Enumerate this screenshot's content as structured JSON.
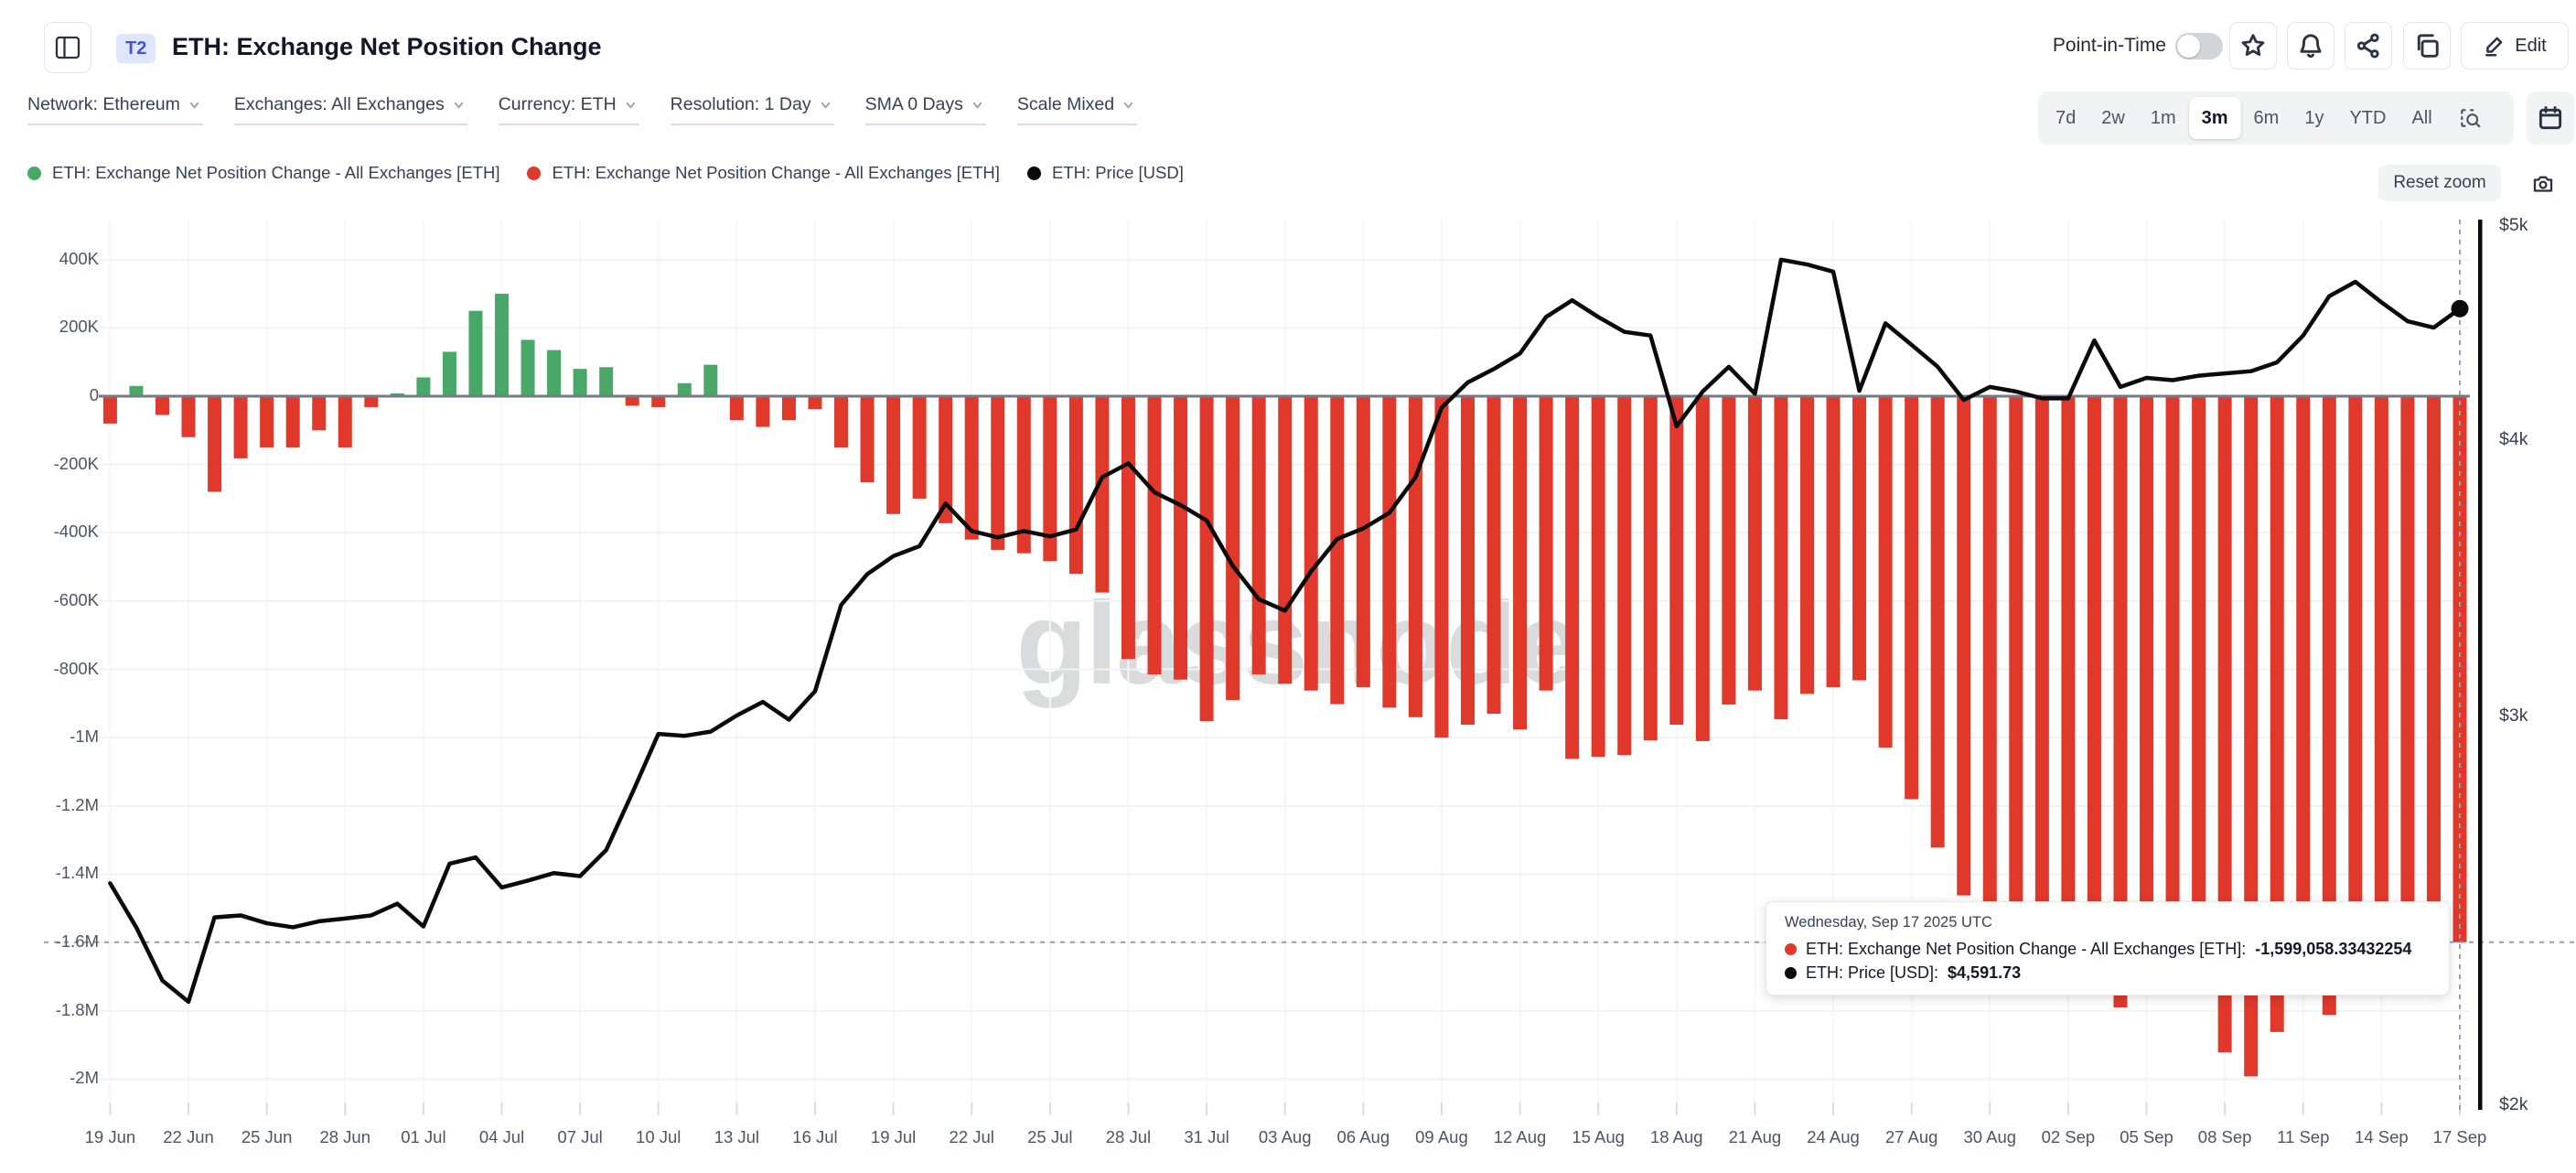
{
  "header": {
    "badge": "T2",
    "title": "ETH: Exchange Net Position Change",
    "point_in_time_label": "Point-in-Time",
    "point_in_time_state": "off",
    "edit_label": "Edit",
    "icon_buttons": [
      "panel-toggle",
      "favorite-star",
      "notification-bell",
      "share",
      "copy",
      "edit-pencil"
    ]
  },
  "filters": [
    {
      "label": "Network: Ethereum"
    },
    {
      "label": "Exchanges: All Exchanges"
    },
    {
      "label": "Currency: ETH"
    },
    {
      "label": "Resolution: 1 Day"
    },
    {
      "label": "SMA 0 Days"
    },
    {
      "label": "Scale Mixed"
    }
  ],
  "range_selector": {
    "options": [
      "7d",
      "2w",
      "1m",
      "3m",
      "6m",
      "1y",
      "YTD",
      "All"
    ],
    "active": "3m",
    "extra_icons": [
      "zoom-area",
      "calendar"
    ]
  },
  "legend": [
    {
      "label": "ETH: Exchange Net Position Change - All Exchanges [ETH]",
      "color": "#48a868"
    },
    {
      "label": "ETH: Exchange Net Position Change - All Exchanges [ETH]",
      "color": "#e0392b"
    },
    {
      "label": "ETH: Price [USD]",
      "color": "#0a0a0a"
    }
  ],
  "reset_zoom_label": "Reset zoom",
  "watermark": "glassnode",
  "tooltip": {
    "title": "Wednesday, Sep 17 2025 UTC",
    "rows": [
      {
        "dot_color": "#e0392b",
        "label": "ETH: Exchange Net Position Change - All Exchanges [ETH]:",
        "value": "-1,599,058.33432254"
      },
      {
        "dot_color": "#0a0a0a",
        "label": "ETH: Price [USD]:",
        "value": "$4,591.73"
      }
    ]
  },
  "chart_data": {
    "type": "mixed",
    "title": "ETH: Exchange Net Position Change",
    "x_start": "2025-06-19",
    "x_end": "2025-09-17",
    "x_tick_labels": [
      "19 Jun",
      "22 Jun",
      "25 Jun",
      "28 Jun",
      "01 Jul",
      "04 Jul",
      "07 Jul",
      "10 Jul",
      "13 Jul",
      "16 Jul",
      "19 Jul",
      "22 Jul",
      "25 Jul",
      "28 Jul",
      "31 Jul",
      "03 Aug",
      "06 Aug",
      "09 Aug",
      "12 Aug",
      "15 Aug",
      "18 Aug",
      "21 Aug",
      "24 Aug",
      "27 Aug",
      "30 Aug",
      "02 Sep",
      "05 Sep",
      "08 Sep",
      "11 Sep",
      "14 Sep",
      "17 Sep"
    ],
    "y_axis_left": {
      "tick_labels": [
        "400K",
        "200K",
        "0",
        "-200K",
        "-400K",
        "-600K",
        "-800K",
        "-1M",
        "-1.2M",
        "-1.4M",
        "-1.6M",
        "-1.8M",
        "-2M"
      ],
      "tick_values": [
        400000,
        200000,
        0,
        -200000,
        -400000,
        -600000,
        -800000,
        -1000000,
        -1200000,
        -1400000,
        -1600000,
        -1800000,
        -2000000
      ],
      "scale": "linear",
      "grid": true
    },
    "y_axis_right": {
      "tick_labels": [
        "$5k",
        "$4k",
        "$3k",
        "$2k"
      ],
      "tick_values": [
        5000,
        4000,
        3000,
        2000
      ],
      "scale": "log"
    },
    "bar_series": {
      "name": "ETH: Exchange Net Position Change - All Exchanges [ETH]",
      "type": "bar",
      "units": "ETH",
      "positive_color": "#48a868",
      "negative_color": "#e0392b",
      "values": [
        -80000,
        30000,
        -55000,
        -120000,
        -280000,
        -182000,
        -150000,
        -150000,
        -100000,
        -150000,
        -32000,
        8000,
        55000,
        130000,
        250000,
        300000,
        165000,
        135000,
        80000,
        85000,
        -28000,
        -32000,
        38000,
        92000,
        -70000,
        -90000,
        -70000,
        -38000,
        -150000,
        -252000,
        -345000,
        -300000,
        -372000,
        -420000,
        -450000,
        -460000,
        -483000,
        -520000,
        -575000,
        -770000,
        -815000,
        -830000,
        -952000,
        -890000,
        -815000,
        -842000,
        -862000,
        -902000,
        -852000,
        -912000,
        -940000,
        -1000000,
        -962000,
        -930000,
        -976000,
        -862000,
        -1062000,
        -1056000,
        -1051000,
        -1008000,
        -962000,
        -1010000,
        -903000,
        -862000,
        -946000,
        -872000,
        -852000,
        -832000,
        -1029000,
        -1180000,
        -1322000,
        -1462000,
        -1558000,
        -1502000,
        -1582000,
        -1612000,
        -1648000,
        -1790000,
        -1742000,
        -1702000,
        -1752000,
        -1922000,
        -1992000,
        -1862000,
        -1742000,
        -1812000,
        -1662000,
        -1608000,
        -1628000,
        -1588000,
        -1599058.33432254
      ]
    },
    "line_series": {
      "name": "ETH: Price [USD]",
      "type": "line",
      "color": "#0a0a0a",
      "scale": "log",
      "values": [
        2523,
        2410,
        2280,
        2230,
        2435,
        2440,
        2420,
        2410,
        2425,
        2432,
        2440,
        2470,
        2412,
        2575,
        2592,
        2512,
        2530,
        2550,
        2542,
        2612,
        2772,
        2948,
        2942,
        2955,
        3005,
        3048,
        2992,
        3082,
        3372,
        3482,
        3548,
        3585,
        3748,
        3642,
        3618,
        3642,
        3622,
        3648,
        3852,
        3908,
        3792,
        3742,
        3682,
        3512,
        3392,
        3352,
        3492,
        3612,
        3652,
        3712,
        3852,
        4142,
        4252,
        4312,
        4382,
        4552,
        4632,
        4552,
        4482,
        4465,
        4062,
        4212,
        4322,
        4202,
        4832,
        4808,
        4772,
        4215,
        4522,
        4422,
        4322,
        4175,
        4232,
        4212,
        4182,
        4182,
        4442,
        4232,
        4272,
        4262,
        4282,
        4292,
        4302,
        4342,
        4465,
        4652,
        4722,
        4622,
        4532,
        4502,
        4591.73
      ]
    },
    "crosshair": {
      "x_label": "17 Sep",
      "h_line_value": -1599058.33432254,
      "marker_price": 4591.73
    },
    "legend_position": "top-left"
  }
}
